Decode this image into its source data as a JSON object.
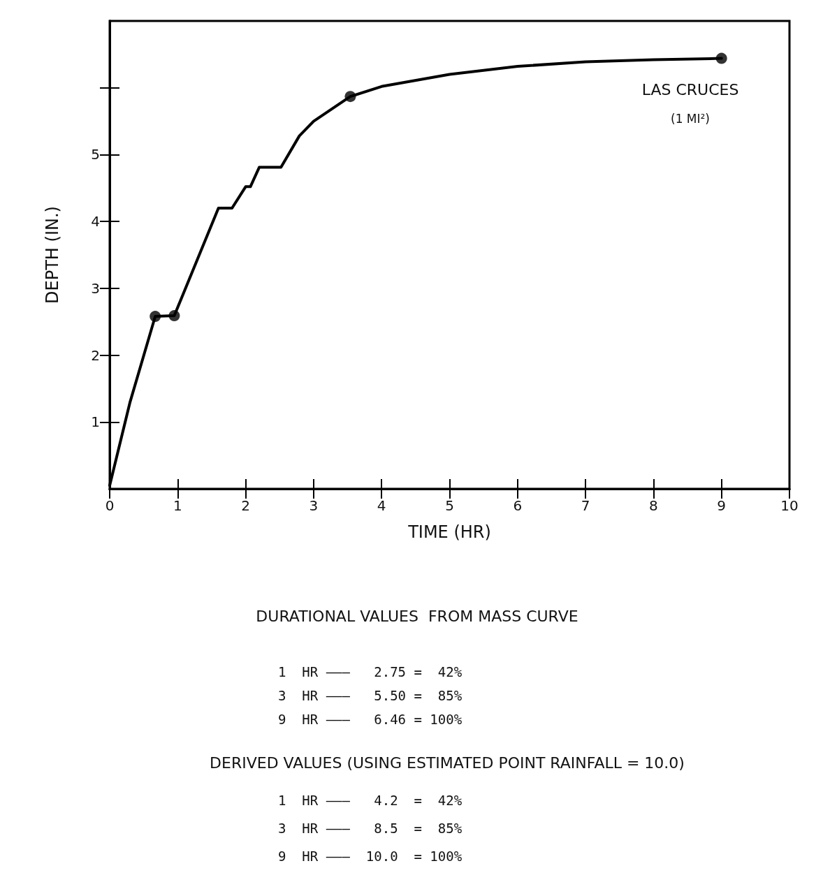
{
  "chart_data": {
    "type": "line",
    "xlabel": "TIME (HR)",
    "ylabel": "DEPTH (IN.)",
    "xlim": [
      0,
      10
    ],
    "xticks": [
      0,
      1,
      2,
      3,
      4,
      5,
      6,
      7,
      8,
      9,
      10
    ],
    "ylim": [
      0,
      7
    ],
    "yticks": [
      1,
      2,
      3,
      4,
      5,
      {
        "value": 6,
        "label": null
      }
    ],
    "grid": false,
    "series": [
      {
        "color": "#000000",
        "marker": "none",
        "line_style": "solid",
        "x": [
          0,
          0.3,
          0.67,
          0.95,
          1.6,
          1.8,
          2.0,
          2.07,
          2.2,
          2.52,
          2.79,
          3.0,
          3.54,
          4.0,
          5.0,
          6.0,
          7.0,
          8.0,
          9.0
        ],
        "values": [
          0.05,
          1.3,
          2.58,
          2.59,
          4.2,
          4.2,
          4.52,
          4.52,
          4.81,
          4.81,
          5.28,
          5.5,
          5.87,
          6.02,
          6.2,
          6.32,
          6.39,
          6.42,
          6.44
        ]
      },
      {
        "type": "scatter",
        "color": "#000000",
        "marker": "circle",
        "x": [
          0.67,
          0.95,
          3.54,
          9.0
        ],
        "values": [
          2.58,
          2.59,
          5.87,
          6.44
        ]
      }
    ],
    "annotations": [
      "LAS CRUCES",
      "(1 MI²)",
      "DURATIONAL VALUES  FROM MASS CURVE",
      "1  HR ———   2.75 =  42%",
      "3  HR ———   5.50 =  85%",
      "9  HR ———   6.46 = 100%",
      "DERIVED VALUES (USING ESTIMATED POINT RAINFALL = 10.0)",
      "1  HR ———   4.2  =  42%",
      "3  HR ———   8.5  =  85%",
      "9  HR ———  10.0  = 100%"
    ]
  }
}
